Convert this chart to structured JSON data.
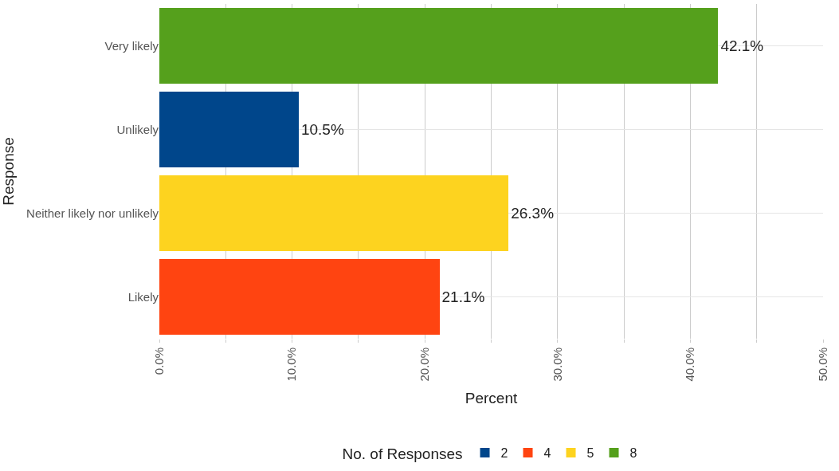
{
  "chart_data": {
    "type": "bar",
    "orientation": "horizontal",
    "stacked": true,
    "xlabel": "Percent",
    "ylabel": "Response",
    "legend_title": "No. of Responses",
    "legend": "bottom",
    "grid": true,
    "categories": [
      "Very likely",
      "Unlikely",
      "Neither likely nor unlikely",
      "Likely"
    ],
    "xlim": [
      0,
      50
    ],
    "xticks": [
      {
        "value": 0,
        "label": "0.0%"
      },
      {
        "value": 5,
        "label": null
      },
      {
        "value": 10,
        "label": "10.0%"
      },
      {
        "value": 15,
        "label": null
      },
      {
        "value": 20,
        "label": "20.0%"
      },
      {
        "value": 25,
        "label": null
      },
      {
        "value": 30,
        "label": "30.0%"
      },
      {
        "value": 35,
        "label": null
      },
      {
        "value": 40,
        "label": "40.0%"
      },
      {
        "value": 45,
        "label": null
      },
      {
        "value": 50,
        "label": "50.0%"
      }
    ],
    "series": [
      {
        "name": "2",
        "color": "#00468b",
        "values": [
          null,
          10.5,
          null,
          null
        ],
        "value_labels": [
          null,
          "10.5%",
          null,
          null
        ]
      },
      {
        "name": "4",
        "color": "#ff4411",
        "values": [
          null,
          null,
          null,
          21.1
        ],
        "value_labels": [
          null,
          null,
          null,
          "21.1%"
        ]
      },
      {
        "name": "5",
        "color": "#fdd31f",
        "values": [
          null,
          null,
          26.3,
          null
        ],
        "value_labels": [
          null,
          null,
          "26.3%",
          null
        ]
      },
      {
        "name": "8",
        "color": "#55a01c",
        "values": [
          42.1,
          null,
          null,
          null
        ],
        "value_labels": [
          "42.1%",
          null,
          null,
          null
        ]
      }
    ]
  }
}
